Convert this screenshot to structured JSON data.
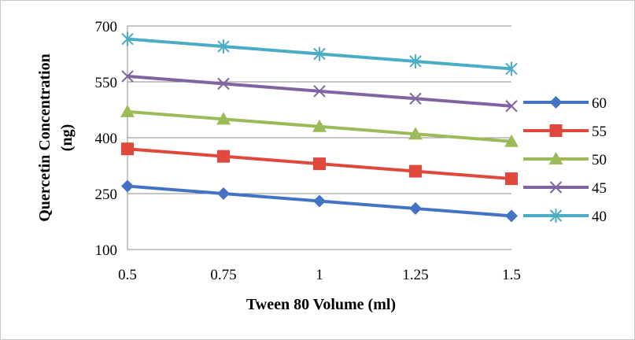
{
  "chart_data": {
    "type": "line",
    "title": "",
    "xlabel": "Tween 80 Volume (ml)",
    "ylabel": "Quercetin Concentration (ng)",
    "ylabel_lines": [
      "Quercetin Concentration",
      "(ng)"
    ],
    "x": [
      0.5,
      0.75,
      1,
      1.25,
      1.5
    ],
    "x_tick_labels": [
      "0.5",
      "0.75",
      "1",
      "1.25",
      "1.5"
    ],
    "ylim": [
      100,
      700
    ],
    "y_ticks": [
      100,
      250,
      400,
      550,
      700
    ],
    "grid": "horizontal",
    "legend_position": "right",
    "series": [
      {
        "name": "60",
        "color": "#4472C4",
        "marker": "diamond",
        "values": [
          270,
          250,
          230,
          210,
          190
        ]
      },
      {
        "name": "55",
        "color": "#E0483E",
        "marker": "square",
        "values": [
          370,
          350,
          330,
          310,
          290
        ]
      },
      {
        "name": "50",
        "color": "#9BBB59",
        "marker": "triangle",
        "values": [
          470,
          450,
          430,
          410,
          390
        ]
      },
      {
        "name": "45",
        "color": "#8064A2",
        "marker": "x",
        "values": [
          565,
          545,
          525,
          505,
          485
        ]
      },
      {
        "name": "40",
        "color": "#4BACC6",
        "marker": "star",
        "values": [
          665,
          645,
          625,
          605,
          585
        ]
      }
    ]
  }
}
